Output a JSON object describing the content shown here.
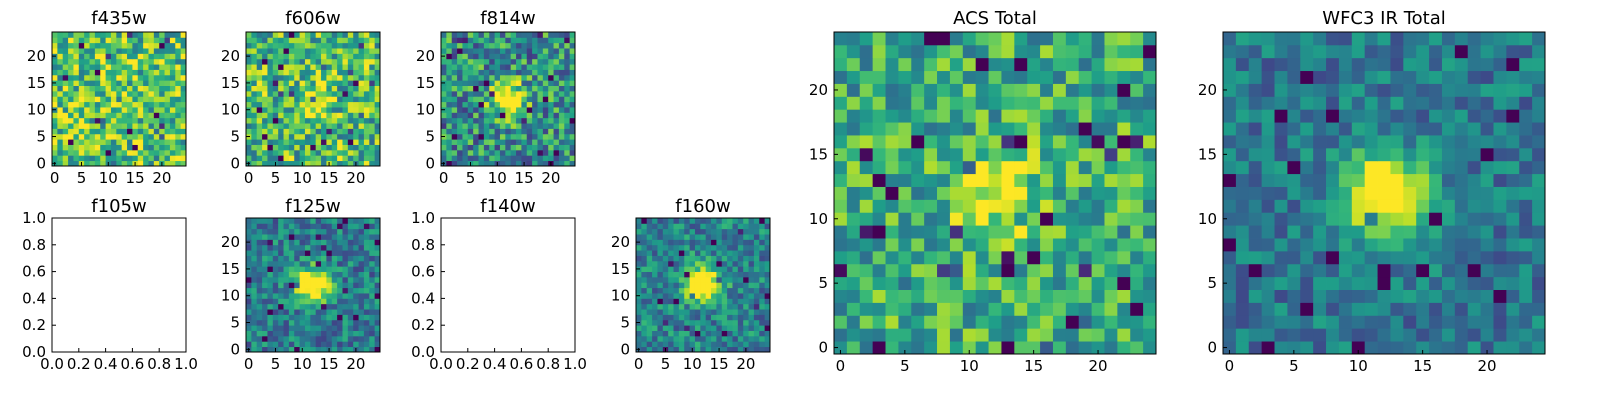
{
  "chart_data": {
    "type": "heatmap",
    "colormap": "viridis",
    "panels": [
      {
        "id": "f435w",
        "title": "f435w",
        "kind": "image",
        "grid": 25,
        "xticks": [
          0,
          5,
          10,
          15,
          20
        ],
        "yticks": [
          0,
          5,
          10,
          15,
          20
        ],
        "center": [
          12,
          12
        ],
        "peak": 0.0,
        "base": 0.72,
        "noise": 0.32,
        "seed": 11
      },
      {
        "id": "f606w",
        "title": "f606w",
        "kind": "image",
        "grid": 25,
        "xticks": [
          0,
          5,
          10,
          15,
          20
        ],
        "yticks": [
          0,
          5,
          10,
          15,
          20
        ],
        "center": [
          12,
          12
        ],
        "peak": 0.25,
        "base": 0.68,
        "noise": 0.32,
        "seed": 23
      },
      {
        "id": "f814w",
        "title": "f814w",
        "kind": "image",
        "grid": 25,
        "xticks": [
          0,
          5,
          10,
          15,
          20
        ],
        "yticks": [
          0,
          5,
          10,
          15,
          20
        ],
        "center": [
          12,
          12
        ],
        "peak": 0.75,
        "base": 0.5,
        "noise": 0.32,
        "seed": 37
      },
      {
        "id": "f105w",
        "title": "f105w",
        "kind": "empty",
        "xticks": [
          "0.0",
          "0.2",
          "0.4",
          "0.6",
          "0.8",
          "1.0"
        ],
        "yticks": [
          "0.0",
          "0.2",
          "0.4",
          "0.6",
          "0.8",
          "1.0"
        ]
      },
      {
        "id": "f125w",
        "title": "f125w",
        "kind": "image",
        "grid": 25,
        "xticks": [
          0,
          5,
          10,
          15,
          20
        ],
        "yticks": [
          0,
          5,
          10,
          15,
          20
        ],
        "center": [
          12,
          12
        ],
        "peak": 0.85,
        "base": 0.42,
        "noise": 0.22,
        "seed": 41
      },
      {
        "id": "f140w",
        "title": "f140w",
        "kind": "empty",
        "xticks": [
          "0.0",
          "0.2",
          "0.4",
          "0.6",
          "0.8",
          "1.0"
        ],
        "yticks": [
          "0.0",
          "0.2",
          "0.4",
          "0.6",
          "0.8",
          "1.0"
        ]
      },
      {
        "id": "f160w",
        "title": "f160w",
        "kind": "image",
        "grid": 25,
        "xticks": [
          0,
          5,
          10,
          15,
          20
        ],
        "yticks": [
          0,
          5,
          10,
          15,
          20
        ],
        "center": [
          12,
          12
        ],
        "peak": 0.85,
        "base": 0.45,
        "noise": 0.22,
        "seed": 53
      },
      {
        "id": "acs_total",
        "title": "ACS Total",
        "kind": "image",
        "grid": 25,
        "xticks": [
          0,
          5,
          10,
          15,
          20
        ],
        "yticks": [
          0,
          5,
          10,
          15,
          20
        ],
        "center": [
          12,
          12
        ],
        "peak": 0.45,
        "base": 0.62,
        "noise": 0.26,
        "seed": 67
      },
      {
        "id": "wfc3_total",
        "title": "WFC3 IR Total",
        "kind": "image",
        "grid": 25,
        "xticks": [
          0,
          5,
          10,
          15,
          20
        ],
        "yticks": [
          0,
          5,
          10,
          15,
          20
        ],
        "center": [
          12,
          12
        ],
        "peak": 0.85,
        "base": 0.4,
        "noise": 0.18,
        "seed": 79
      }
    ]
  }
}
